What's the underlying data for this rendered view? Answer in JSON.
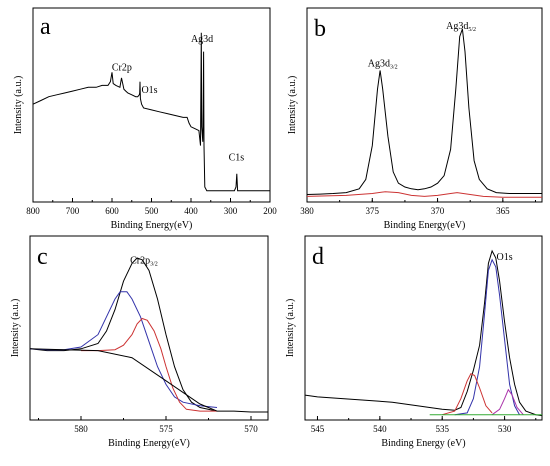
{
  "chart_data": [
    {
      "id": "a",
      "type": "line",
      "panel_letter": "a",
      "xlabel": "Binding Energy(eV)",
      "ylabel": "Intensity (a.u.)",
      "xlim": [
        800,
        200
      ],
      "x_ticks": [
        "800",
        "700",
        "600",
        "500",
        "400",
        "300",
        "200"
      ],
      "x_tick_values": [
        800,
        700,
        600,
        500,
        400,
        300,
        200
      ],
      "ylim": [
        0,
        100
      ],
      "annotations": [
        {
          "text": "Cr2p",
          "x": 575,
          "y": 70
        },
        {
          "text": "O1s",
          "x": 505,
          "y": 58
        },
        {
          "text": "Ag3d",
          "x": 372,
          "y": 85
        },
        {
          "text": "C1s",
          "x": 285,
          "y": 22
        }
      ],
      "series": [
        {
          "color": "#000000",
          "points": [
            [
              800,
              52
            ],
            [
              780,
              54
            ],
            [
              760,
              56
            ],
            [
              740,
              57
            ],
            [
              720,
              58
            ],
            [
              700,
              59
            ],
            [
              680,
              60
            ],
            [
              660,
              61
            ],
            [
              640,
              61
            ],
            [
              625,
              62
            ],
            [
              610,
              62
            ],
            [
              604,
              64
            ],
            [
              600,
              69
            ],
            [
              597,
              63
            ],
            [
              590,
              62
            ],
            [
              580,
              61
            ],
            [
              576,
              66
            ],
            [
              574,
              64
            ],
            [
              572,
              62
            ],
            [
              570,
              60
            ],
            [
              565,
              59
            ],
            [
              560,
              58
            ],
            [
              550,
              57
            ],
            [
              540,
              56
            ],
            [
              535,
              56
            ],
            [
              531,
              57
            ],
            [
              530,
              58
            ],
            [
              529,
              64
            ],
            [
              528,
              55
            ],
            [
              525,
              52
            ],
            [
              520,
              50
            ],
            [
              500,
              49
            ],
            [
              480,
              48
            ],
            [
              460,
              47
            ],
            [
              440,
              46
            ],
            [
              420,
              45
            ],
            [
              410,
              45
            ],
            [
              405,
              42
            ],
            [
              400,
              40
            ],
            [
              390,
              39
            ],
            [
              380,
              38
            ],
            [
              376,
              30
            ],
            [
              375,
              60
            ],
            [
              374,
              90
            ],
            [
              373,
              40
            ],
            [
              370,
              32
            ],
            [
              369,
              50
            ],
            [
              368,
              80
            ],
            [
              367,
              30
            ],
            [
              365,
              8
            ],
            [
              360,
              6
            ],
            [
              340,
              6
            ],
            [
              320,
              6
            ],
            [
              300,
              6
            ],
            [
              290,
              6
            ],
            [
              286,
              8
            ],
            [
              284,
              15
            ],
            [
              282,
              6
            ],
            [
              280,
              6
            ],
            [
              260,
              6
            ],
            [
              240,
              6
            ],
            [
              220,
              6
            ],
            [
              200,
              6
            ]
          ]
        }
      ]
    },
    {
      "id": "b",
      "type": "line",
      "panel_letter": "b",
      "xlabel": "Binding Energy(eV)",
      "ylabel": "Intensity (a.u.)",
      "xlim": [
        380,
        362
      ],
      "x_ticks": [
        "380",
        "375",
        "370",
        "365"
      ],
      "x_tick_values": [
        380,
        375,
        370,
        365
      ],
      "ylim": [
        0,
        100
      ],
      "annotations": [
        {
          "text": "Ag3d",
          "sub": "3/2",
          "x": 374.2,
          "y": 72
        },
        {
          "text": "Ag3d",
          "sub": "5/2",
          "x": 368.2,
          "y": 92
        }
      ],
      "series": [
        {
          "color": "#000000",
          "points": [
            [
              380,
              4
            ],
            [
              379,
              4.2
            ],
            [
              378,
              4.5
            ],
            [
              377,
              5
            ],
            [
              376,
              7
            ],
            [
              375.5,
              12
            ],
            [
              375,
              30
            ],
            [
              374.6,
              60
            ],
            [
              374.4,
              70
            ],
            [
              374.2,
              60
            ],
            [
              373.8,
              35
            ],
            [
              373.4,
              16
            ],
            [
              373,
              10
            ],
            [
              372.5,
              8
            ],
            [
              372,
              7
            ],
            [
              371.5,
              6.5
            ],
            [
              371,
              7
            ],
            [
              370.5,
              8
            ],
            [
              370,
              10
            ],
            [
              369.5,
              14
            ],
            [
              369,
              28
            ],
            [
              368.6,
              60
            ],
            [
              368.3,
              88
            ],
            [
              368.1,
              92
            ],
            [
              367.9,
              80
            ],
            [
              367.6,
              50
            ],
            [
              367.2,
              22
            ],
            [
              366.8,
              12
            ],
            [
              366.2,
              7
            ],
            [
              365.5,
              5
            ],
            [
              364.5,
              4.5
            ],
            [
              363.5,
              4.5
            ],
            [
              362,
              4.5
            ]
          ]
        },
        {
          "color": "#cc3333",
          "points": [
            [
              380,
              3
            ],
            [
              377,
              3.5
            ],
            [
              375,
              4.5
            ],
            [
              374,
              5.5
            ],
            [
              373,
              5
            ],
            [
              372,
              3.5
            ],
            [
              371,
              3
            ],
            [
              370,
              3.5
            ],
            [
              369,
              4.5
            ],
            [
              368.5,
              5
            ],
            [
              367.5,
              4
            ],
            [
              366.5,
              3
            ],
            [
              365,
              2.5
            ],
            [
              362,
              2.5
            ]
          ]
        }
      ]
    },
    {
      "id": "c",
      "type": "line",
      "panel_letter": "c",
      "xlabel": "Binding Energy(eV)",
      "ylabel": "Intensity (a.u.)",
      "xlim": [
        583,
        569
      ],
      "x_ticks": [
        "580",
        "575",
        "570"
      ],
      "x_tick_values": [
        580,
        575,
        570
      ],
      "ylim": [
        0,
        100
      ],
      "annotations": [
        {
          "text": "Cr2p",
          "sub": "3/2",
          "x": 576.3,
          "y": 88
        }
      ],
      "series": [
        {
          "color": "#000000",
          "points": [
            [
              583,
              40
            ],
            [
              582,
              39
            ],
            [
              581,
              39
            ],
            [
              580,
              40
            ],
            [
              579,
              43
            ],
            [
              578.5,
              50
            ],
            [
              578,
              62
            ],
            [
              577.5,
              78
            ],
            [
              577,
              88
            ],
            [
              576.7,
              91
            ],
            [
              576.4,
              90
            ],
            [
              576,
              84
            ],
            [
              575.5,
              68
            ],
            [
              575,
              48
            ],
            [
              574.5,
              30
            ],
            [
              574,
              17
            ],
            [
              573.5,
              10
            ],
            [
              573,
              7
            ],
            [
              572,
              5
            ],
            [
              571,
              5
            ],
            [
              570,
              4.5
            ],
            [
              569,
              4.5
            ]
          ]
        },
        {
          "color": "#3333aa",
          "points": [
            [
              583,
              40
            ],
            [
              582,
              39.5
            ],
            [
              581,
              39.5
            ],
            [
              580,
              41
            ],
            [
              579,
              48
            ],
            [
              578.5,
              58
            ],
            [
              578,
              68
            ],
            [
              577.7,
              72
            ],
            [
              577.3,
              72
            ],
            [
              577,
              68
            ],
            [
              576.5,
              58
            ],
            [
              576,
              44
            ],
            [
              575.5,
              30
            ],
            [
              575,
              20
            ],
            [
              574.5,
              13
            ],
            [
              574,
              10
            ],
            [
              573,
              8
            ],
            [
              572,
              7
            ]
          ]
        },
        {
          "color": "#cc3333",
          "points": [
            [
              580,
              39
            ],
            [
              579,
              39
            ],
            [
              578,
              39.5
            ],
            [
              577.5,
              42
            ],
            [
              577,
              48
            ],
            [
              576.7,
              54
            ],
            [
              576.4,
              57
            ],
            [
              576.1,
              56
            ],
            [
              575.7,
              50
            ],
            [
              575.3,
              40
            ],
            [
              575,
              30
            ],
            [
              574.6,
              18
            ],
            [
              574.2,
              10
            ],
            [
              573.8,
              6
            ],
            [
              573,
              5
            ],
            [
              572,
              5
            ]
          ]
        },
        {
          "color": "#000000",
          "points": [
            [
              583,
              40
            ],
            [
              581,
              39.5
            ],
            [
              579,
              39
            ],
            [
              577,
              35
            ],
            [
              575,
              22
            ],
            [
              573,
              9
            ],
            [
              572,
              5
            ]
          ]
        }
      ]
    },
    {
      "id": "d",
      "type": "line",
      "panel_letter": "d",
      "xlabel": "Binding Energy (eV)",
      "ylabel": "Intensity (a.u.)",
      "xlim": [
        546,
        527
      ],
      "x_ticks": [
        "545",
        "540",
        "535",
        "530"
      ],
      "x_tick_values": [
        545,
        540,
        535,
        530
      ],
      "ylim": [
        0,
        100
      ],
      "annotations": [
        {
          "text": "O1s",
          "x": 530,
          "y": 90
        }
      ],
      "series": [
        {
          "color": "#000000",
          "points": [
            [
              546,
              14
            ],
            [
              545,
              13
            ],
            [
              544,
              12.5
            ],
            [
              543,
              12
            ],
            [
              542,
              11.5
            ],
            [
              541,
              11
            ],
            [
              540,
              10.5
            ],
            [
              539,
              10
            ],
            [
              538,
              9
            ],
            [
              537,
              8
            ],
            [
              536,
              7
            ],
            [
              535,
              6
            ],
            [
              534,
              5.5
            ],
            [
              533.5,
              7
            ],
            [
              533,
              16
            ],
            [
              532.5,
              28
            ],
            [
              532,
              42
            ],
            [
              531.6,
              66
            ],
            [
              531.3,
              88
            ],
            [
              531,
              95
            ],
            [
              530.7,
              91
            ],
            [
              530.4,
              78
            ],
            [
              530,
              55
            ],
            [
              529.6,
              35
            ],
            [
              529.2,
              20
            ],
            [
              528.8,
              10
            ],
            [
              528.3,
              5
            ],
            [
              527.5,
              3
            ],
            [
              527,
              2.5
            ]
          ]
        },
        {
          "color": "#3333aa",
          "points": [
            [
              534,
              3
            ],
            [
              533,
              4
            ],
            [
              532.5,
              12
            ],
            [
              532,
              30
            ],
            [
              531.6,
              60
            ],
            [
              531.3,
              84
            ],
            [
              531,
              90
            ],
            [
              530.7,
              86
            ],
            [
              530.4,
              70
            ],
            [
              530,
              45
            ],
            [
              529.6,
              20
            ],
            [
              529.2,
              8
            ],
            [
              528.8,
              3
            ]
          ]
        },
        {
          "color": "#cc3333",
          "points": [
            [
              535,
              3
            ],
            [
              534,
              5
            ],
            [
              533.5,
              12
            ],
            [
              533,
              22
            ],
            [
              532.7,
              26
            ],
            [
              532.4,
              25
            ],
            [
              532,
              18
            ],
            [
              531.5,
              8
            ],
            [
              531,
              4
            ]
          ]
        },
        {
          "color": "#aa33aa",
          "points": [
            [
              531,
              3
            ],
            [
              530.4,
              6
            ],
            [
              530,
              12
            ],
            [
              529.7,
              17
            ],
            [
              529.4,
              14
            ],
            [
              529,
              7
            ],
            [
              528.5,
              3
            ]
          ]
        },
        {
          "color": "#33aa33",
          "points": [
            [
              536,
              3
            ],
            [
              534,
              3
            ],
            [
              532,
              3
            ],
            [
              530,
              3
            ],
            [
              528,
              3
            ],
            [
              527,
              3
            ]
          ]
        }
      ]
    }
  ]
}
